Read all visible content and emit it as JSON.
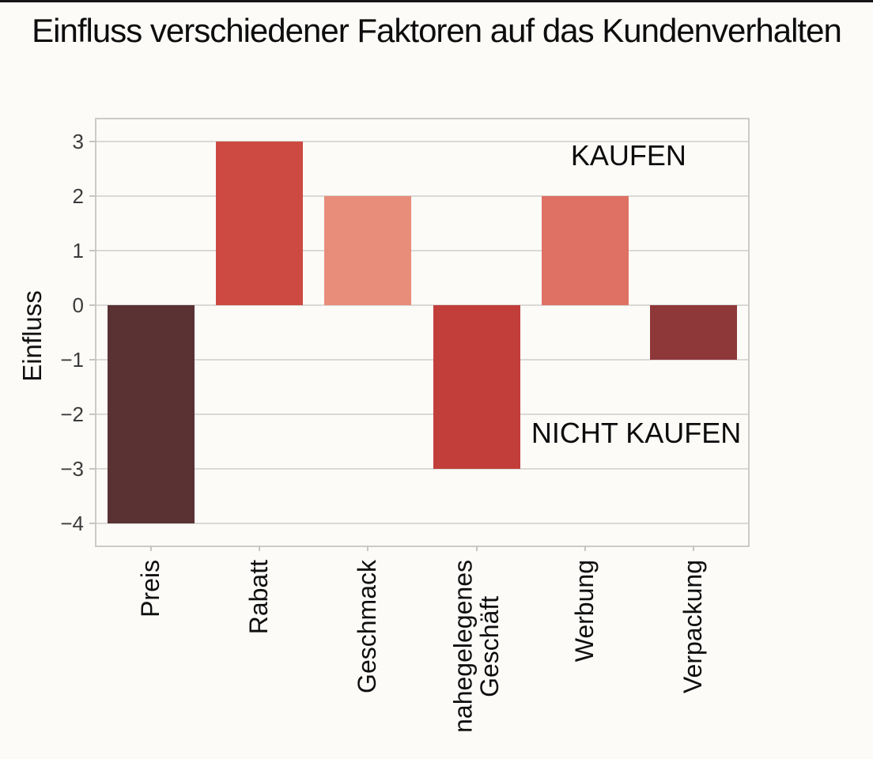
{
  "page": {
    "background": "#fcfbf8",
    "top_strip_color": "#171717"
  },
  "chart_data": {
    "type": "bar",
    "title": "Einfluss verschiedener Faktoren auf das Kundenverhalten",
    "xlabel": "",
    "ylabel": "Einfluss",
    "categories": [
      "Preis",
      "Rabatt",
      "Geschmack",
      "nahegelegenes\nGeschäft",
      "Werbung",
      "Verpackung"
    ],
    "values": [
      -4,
      3,
      2,
      -3,
      2,
      -1
    ],
    "bar_colors": [
      "#5a3234",
      "#cd4a42",
      "#e78d79",
      "#c23e3a",
      "#de7163",
      "#8e383a"
    ],
    "ylim": [
      -4.4,
      3.4
    ],
    "yticks": [
      3,
      2,
      1,
      0,
      -1,
      -2,
      -3,
      -4
    ],
    "ytick_labels": [
      "3",
      "2",
      "1",
      "0",
      "−1",
      "−2",
      "−3",
      "−4"
    ],
    "grid": "horizontal gridlines on, vertical off",
    "legend": "none",
    "annotations": [
      {
        "text": "KAUFEN",
        "x": 4.4,
        "y": 2.73
      },
      {
        "text": "NICHT KAUFEN",
        "x": 4.47,
        "y": -2.35
      }
    ],
    "grid_color": "#dad9d7",
    "frame_color": "#cccbc9",
    "tick_label_color": "#3b3b3b"
  }
}
